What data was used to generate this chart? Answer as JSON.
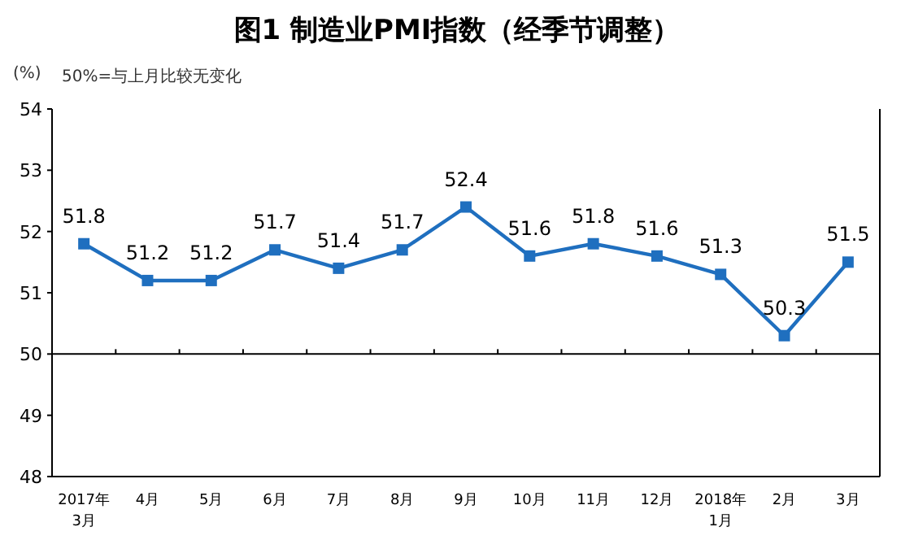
{
  "chart_data": {
    "type": "line",
    "title": "图1 制造业PMI指数（经季节调整）",
    "ylabel": "(%)",
    "annotations": [
      "50%=与上月比较无变化"
    ],
    "categories": [
      "2017年\n3月",
      "4月",
      "5月",
      "6月",
      "7月",
      "8月",
      "9月",
      "10月",
      "11月",
      "12月",
      "2018年\n1月",
      "2月",
      "3月"
    ],
    "series": [
      {
        "color": "#1f6fbf",
        "values": [
          51.8,
          51.2,
          51.2,
          51.7,
          51.4,
          51.7,
          52.4,
          51.6,
          51.8,
          51.6,
          51.3,
          50.3,
          51.5
        ]
      }
    ],
    "ylim": [
      48,
      54
    ],
    "yticks": [
      48,
      49,
      50,
      51,
      52,
      53,
      54
    ],
    "ref_lines": [
      {
        "axis": "y",
        "value": 50,
        "color": "#000000"
      }
    ],
    "data_labels": true,
    "marker": "square",
    "line_style": "solid"
  }
}
